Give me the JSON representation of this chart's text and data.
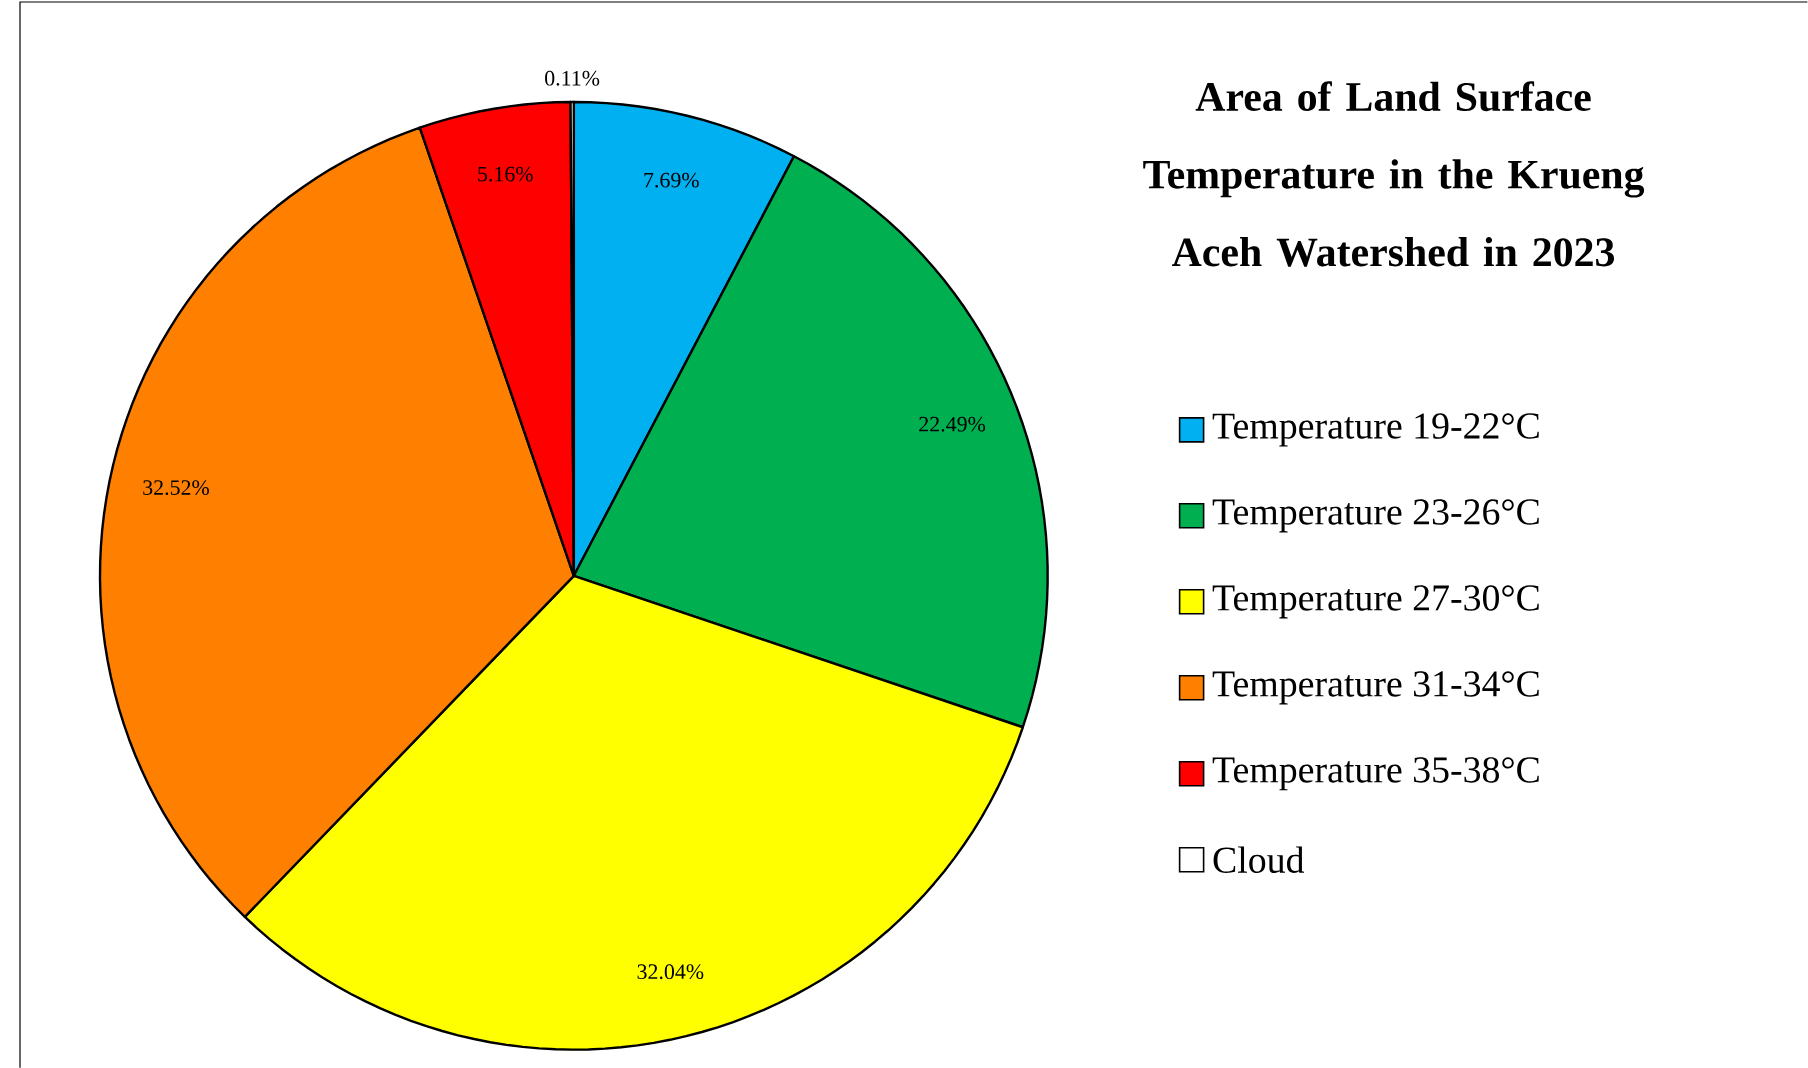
{
  "chart_data": {
    "type": "pie",
    "title": "Area of Land Surface Temperature in the Krueng Aceh Watershed in 2023",
    "categories": [
      "Temperature 19-22°C",
      "Temperature 23-26°C",
      "Temperature 27-30°C",
      "Temperature 31-34°C",
      "Temperature 35-38°C",
      "Cloud"
    ],
    "values": [
      7.69,
      22.49,
      32.04,
      32.52,
      5.16,
      0.11
    ],
    "value_labels": [
      "7.69%",
      "22.49%",
      "32.04%",
      "32.52%",
      "5.16%",
      "0.11%"
    ],
    "colors": [
      "#00b0f0",
      "#00b050",
      "#ffff00",
      "#ff8000",
      "#ff0000",
      "#ffffff"
    ],
    "legend": "right"
  }
}
